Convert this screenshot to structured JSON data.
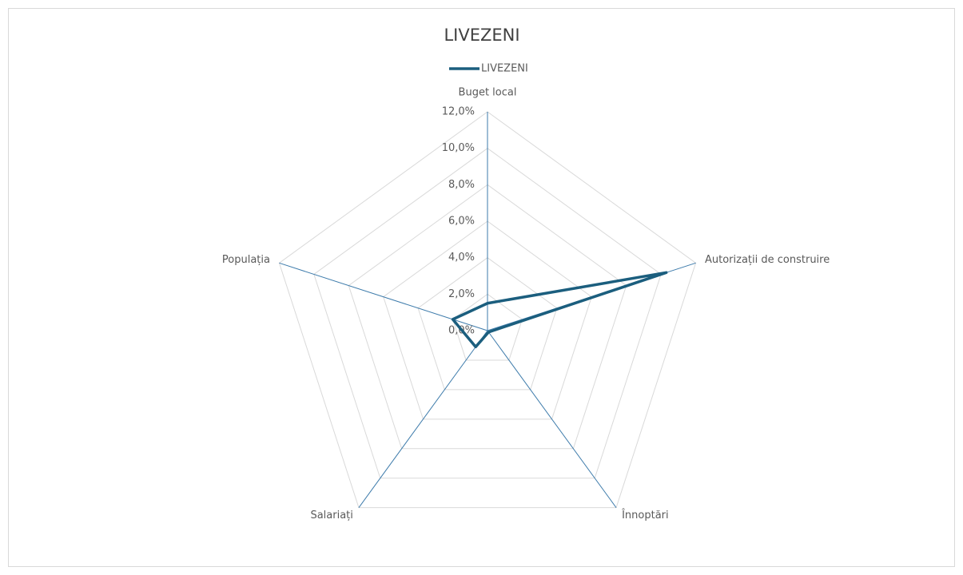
{
  "chart_data": {
    "type": "radar",
    "title": "LIVEZENI",
    "categories": [
      "Buget local",
      "Autorizații de construire",
      "Înnoptări",
      "Salariați",
      "Populația"
    ],
    "series": [
      {
        "name": "LIVEZENI",
        "color": "#1b5e7e",
        "values": [
          1.5,
          10.3,
          0.1,
          1.1,
          2.0
        ]
      }
    ],
    "ylim": [
      0,
      12
    ],
    "yticks": [
      {
        "value": 0,
        "label": "0,0%"
      },
      {
        "value": 2,
        "label": "2,0%"
      },
      {
        "value": 4,
        "label": "4,0%"
      },
      {
        "value": 6,
        "label": "6,0%"
      },
      {
        "value": 8,
        "label": "8,0%"
      },
      {
        "value": 10,
        "label": "10,0%"
      },
      {
        "value": 12,
        "label": "12,0%"
      }
    ],
    "grid": true,
    "legend": "top"
  }
}
